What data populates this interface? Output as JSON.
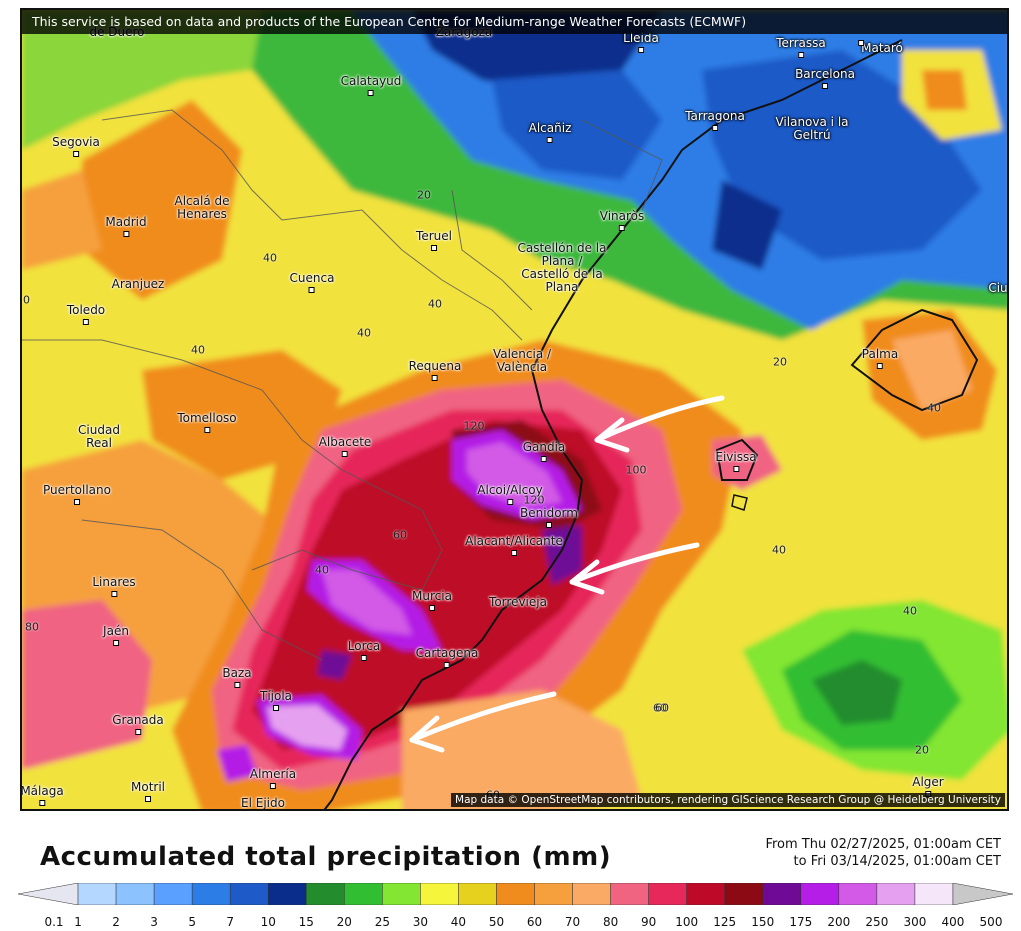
{
  "attribution_top": "This service is based on data and products of the European Centre for Medium-range Weather Forecasts (ECMWF)",
  "attribution_bottom": "Map data © OpenStreetMap contributors, rendering GIScience Research Group @ Heidelberg University",
  "legend": {
    "title": "Accumulated total precipitation (mm)",
    "date_line1": "From Thu 02/27/2025, 01:00am CET",
    "date_line2": "to Fri 03/14/2025, 01:00am CET",
    "unit": "mm",
    "thresholds": [
      "0.1",
      "1",
      "2",
      "3",
      "5",
      "7",
      "10",
      "15",
      "20",
      "25",
      "30",
      "40",
      "50",
      "60",
      "70",
      "80",
      "90",
      "100",
      "125",
      "150",
      "175",
      "200",
      "250",
      "300",
      "400",
      "500"
    ],
    "colors": [
      "#e6e6f0",
      "#b4d7ff",
      "#8cc3ff",
      "#5aa0ff",
      "#2d7de6",
      "#1e5ac8",
      "#0a2d8c",
      "#238c2d",
      "#32be32",
      "#82e632",
      "#f5f53c",
      "#e6d21e",
      "#f08c1e",
      "#f5a03c",
      "#faaa64",
      "#f06482",
      "#e6285a",
      "#be0a28",
      "#8c0a14",
      "#6e0a96",
      "#b41ee6",
      "#d25ae6",
      "#e6a0f0",
      "#f5e6fa",
      "#c8c8c8"
    ]
  },
  "places": [
    {
      "name": "de Duero",
      "style": "light"
    },
    {
      "name": "Zaragoza",
      "style": "light"
    },
    {
      "name": "Lleida",
      "style": "dark"
    },
    {
      "name": "Terrassa",
      "style": "dark"
    },
    {
      "name": "Mataró",
      "style": "dark"
    },
    {
      "name": "Barcelona",
      "style": "dark"
    },
    {
      "name": "Calatayud",
      "style": "light"
    },
    {
      "name": "Alcañiz",
      "style": "dark"
    },
    {
      "name": "Tarragona",
      "style": "dark"
    },
    {
      "name": "Vilanova i la Geltrú",
      "style": "dark"
    },
    {
      "name": "Segovia",
      "style": "light"
    },
    {
      "name": "Alcalá de Henares",
      "style": "light"
    },
    {
      "name": "Madrid",
      "style": "light"
    },
    {
      "name": "Teruel",
      "style": "light"
    },
    {
      "name": "Vinaròs",
      "style": "light"
    },
    {
      "name": "Castellón de la Plana / Castelló de la Plana",
      "style": "light"
    },
    {
      "name": "Aranjuez",
      "style": "light"
    },
    {
      "name": "Cuenca",
      "style": "light"
    },
    {
      "name": "Toledo",
      "style": "light"
    },
    {
      "name": "Valencia / València",
      "style": "light"
    },
    {
      "name": "Requena",
      "style": "light"
    },
    {
      "name": "Palma",
      "style": "light"
    },
    {
      "name": "Tomelloso",
      "style": "light"
    },
    {
      "name": "Ciudad Real",
      "style": "light"
    },
    {
      "name": "Albacete",
      "style": "light"
    },
    {
      "name": "Gandia",
      "style": "light"
    },
    {
      "name": "Eivissa",
      "style": "light"
    },
    {
      "name": "Alcoi/Alcoy",
      "style": "light"
    },
    {
      "name": "Benidorm",
      "style": "light"
    },
    {
      "name": "Puertollano",
      "style": "light"
    },
    {
      "name": "Alacant/Alicante",
      "style": "light"
    },
    {
      "name": "Linares",
      "style": "light"
    },
    {
      "name": "Murcia",
      "style": "light"
    },
    {
      "name": "Torrevieja",
      "style": "light"
    },
    {
      "name": "Jaén",
      "style": "light"
    },
    {
      "name": "Lorca",
      "style": "light"
    },
    {
      "name": "Cartagena",
      "style": "light"
    },
    {
      "name": "Baza",
      "style": "light"
    },
    {
      "name": "Tíjola",
      "style": "light"
    },
    {
      "name": "Granada",
      "style": "light"
    },
    {
      "name": "Almería",
      "style": "light"
    },
    {
      "name": "Motril",
      "style": "light"
    },
    {
      "name": "El Ejido",
      "style": "light"
    },
    {
      "name": "Málaga",
      "style": "light"
    },
    {
      "name": "Alger",
      "style": "light"
    },
    {
      "name": "Ciu",
      "style": "dark"
    }
  ],
  "isolines": [
    "20",
    "20",
    "40",
    "40",
    "40",
    "40",
    "60",
    "60",
    "60",
    "40",
    "40",
    "100",
    "120",
    "120",
    "20",
    "40",
    "20",
    "40",
    "80",
    "60"
  ]
}
